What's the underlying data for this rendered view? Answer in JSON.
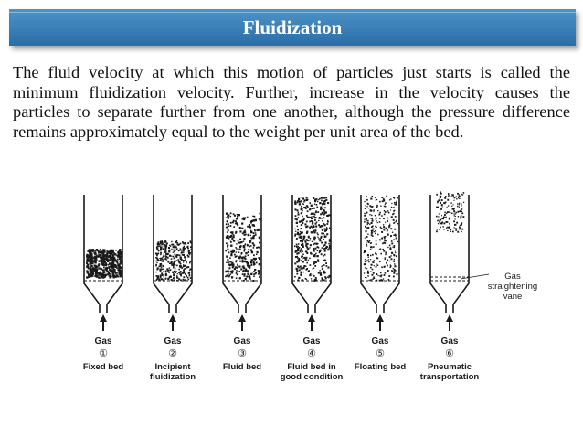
{
  "slide": {
    "title": "Fluidization",
    "paragraph": "The fluid velocity at which this motion of particles just starts is called the minimum fluidization velocity. Further, increase in the velocity causes the particles to separate further from one another, although the pressure difference remains approximately equal to the weight per unit area of the bed."
  },
  "figure": {
    "columns": [
      {
        "gas": "Gas",
        "number": "①",
        "label": [
          "Fixed bed"
        ]
      },
      {
        "gas": "Gas",
        "number": "②",
        "label": [
          "Incipient",
          "fluidization"
        ]
      },
      {
        "gas": "Gas",
        "number": "③",
        "label": [
          "Fluid bed"
        ]
      },
      {
        "gas": "Gas",
        "number": "④",
        "label": [
          "Fluid bed in",
          "good condition"
        ]
      },
      {
        "gas": "Gas",
        "number": "⑤",
        "label": [
          "Floating bed"
        ]
      },
      {
        "gas": "Gas",
        "number": "⑥",
        "label": [
          "Pneumatic",
          "transportation"
        ]
      }
    ],
    "vane_label": [
      "Gas",
      "straightening",
      "vane"
    ]
  },
  "colors": {
    "title_bar_top": "#4d94c8",
    "title_bar_bottom": "#2a6da8",
    "ink": "#1a1a1a"
  }
}
